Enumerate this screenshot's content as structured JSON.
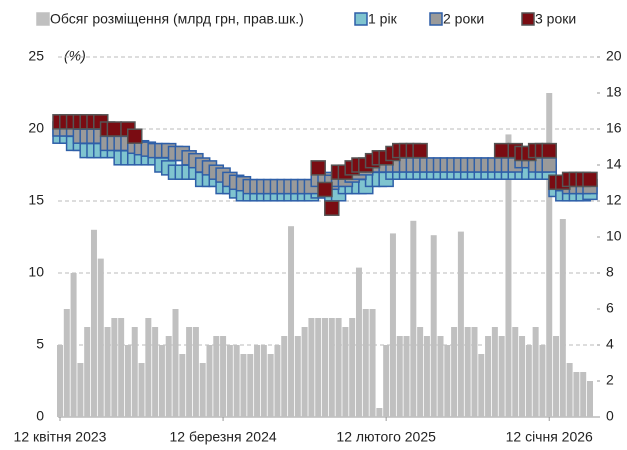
{
  "chart_data": {
    "type": "combo",
    "y_axis_label": "(%)",
    "categories": [
      "12 квітня 2023",
      null,
      null,
      null,
      null,
      null,
      null,
      null,
      null,
      null,
      null,
      null,
      null,
      null,
      null,
      null,
      null,
      null,
      null,
      null,
      null,
      null,
      null,
      null,
      "12 березня 2024",
      null,
      null,
      null,
      null,
      null,
      null,
      null,
      null,
      null,
      null,
      null,
      null,
      null,
      null,
      null,
      null,
      null,
      null,
      null,
      null,
      null,
      null,
      null,
      "12 лютого 2025",
      null,
      null,
      null,
      null,
      null,
      null,
      null,
      null,
      null,
      null,
      null,
      null,
      null,
      null,
      null,
      null,
      null,
      null,
      null,
      null,
      null,
      null,
      null,
      "12 січня 2026",
      null,
      null,
      null,
      null,
      null,
      null
    ],
    "ylim": [
      0,
      25
    ],
    "yticks": [
      0,
      5,
      10,
      15,
      20,
      25
    ],
    "y2lim": [
      0,
      20
    ],
    "y2ticks": [
      0,
      2,
      4,
      6,
      8,
      10,
      12,
      14,
      16,
      18,
      20
    ],
    "grid": true,
    "legend": "top",
    "series": [
      {
        "name": "Обсяг розміщення (млрд грн, прав.шк.)",
        "type": "bar",
        "axis": "y2",
        "color": "#c0c0c0",
        "values": [
          4,
          6,
          8,
          3,
          5,
          10.4,
          8.8,
          5,
          5.5,
          5.5,
          4,
          5,
          3,
          5.5,
          5,
          4,
          4.5,
          6,
          3.5,
          5,
          5,
          3,
          4,
          4.5,
          4.5,
          4,
          4,
          3.5,
          3.5,
          4,
          4,
          3.5,
          4,
          4.5,
          10.6,
          4.5,
          5,
          5.5,
          5.5,
          5.5,
          5.5,
          5.5,
          5,
          5.5,
          8.3,
          6,
          6,
          0.5,
          4,
          10.2,
          4.5,
          4.5,
          10.9,
          5,
          4.5,
          10.1,
          4.5,
          4,
          5,
          10.3,
          5,
          5,
          3.5,
          4.5,
          5,
          4.5,
          15.7,
          5,
          4.5,
          4,
          5,
          4,
          18,
          4.5,
          11,
          3,
          2.5,
          2.5,
          2
        ]
      },
      {
        "name": "1 рік",
        "type": "scatter",
        "color": "#7fc4cf",
        "edge": "#2e5fa8",
        "values": [
          19.5,
          19.5,
          19,
          19,
          18.5,
          18.5,
          18.5,
          18.5,
          18.5,
          18,
          18,
          18,
          18,
          18,
          18,
          17.5,
          17.3,
          17,
          17,
          17,
          17,
          16.5,
          16.5,
          16.5,
          16,
          16,
          15.7,
          15.5,
          15.5,
          15.5,
          15.5,
          15.5,
          15.5,
          15.5,
          15.5,
          15.5,
          15.5,
          15.5,
          15.7,
          15.7,
          15.5,
          15.5,
          16,
          16,
          16,
          16,
          16.5,
          16.5,
          16.5,
          17,
          17,
          17,
          17,
          17,
          17,
          17,
          17,
          17,
          17,
          17,
          17,
          17,
          17,
          17,
          17,
          17,
          17,
          17,
          17,
          17,
          17,
          17,
          17,
          15.8,
          15.5,
          15.5,
          15.5,
          15.5,
          15.6
        ]
      },
      {
        "name": "2 роки",
        "type": "scatter",
        "color": "#9a9a9a",
        "edge": "#2e5fa8",
        "values": [
          20,
          20,
          20,
          19.5,
          19.5,
          19.5,
          19.5,
          19,
          19,
          19,
          19,
          18.8,
          18.7,
          18.6,
          18.5,
          18.5,
          18.5,
          18.3,
          18.3,
          18,
          17.8,
          17.5,
          17.3,
          17,
          16.8,
          16.5,
          16.3,
          16.2,
          16,
          16,
          16,
          16,
          16,
          16,
          16,
          16,
          16,
          16,
          16.5,
          16.5,
          16.3,
          16.5,
          16.5,
          16.8,
          17,
          17.3,
          17.5,
          17.5,
          17.5,
          17.5,
          17.5,
          17.5,
          17.5,
          17.5,
          17.5,
          17.5,
          17.5,
          17.5,
          17.5,
          17.5,
          17.5,
          17.5,
          17.5,
          17.5,
          17.5,
          17.5,
          17.5,
          17.5,
          17.8,
          17.8,
          17.5,
          17.5,
          17.5,
          16.3,
          16.2,
          16,
          16,
          16,
          16
        ]
      },
      {
        "name": "3 роки",
        "type": "scatter",
        "color": "#7a0c12",
        "edge": "#555555",
        "values": [
          20.5,
          20.5,
          20.5,
          20.5,
          20.5,
          20.5,
          20.5,
          20,
          20,
          null,
          20,
          19.5,
          null,
          null,
          null,
          null,
          null,
          null,
          null,
          null,
          null,
          null,
          null,
          null,
          null,
          null,
          null,
          null,
          null,
          null,
          null,
          null,
          null,
          null,
          null,
          null,
          null,
          null,
          17.3,
          15.8,
          14.5,
          17,
          17,
          17.3,
          17.5,
          17.5,
          17.8,
          18,
          18,
          18.3,
          18.5,
          18.5,
          18.5,
          18.5,
          null,
          null,
          null,
          null,
          null,
          null,
          null,
          null,
          null,
          null,
          null,
          18.5,
          null,
          18.5,
          18.3,
          18.3,
          18.5,
          18.5,
          18.5,
          16.3,
          16.3,
          16.5,
          16.5,
          16.5,
          16.5
        ]
      }
    ]
  }
}
